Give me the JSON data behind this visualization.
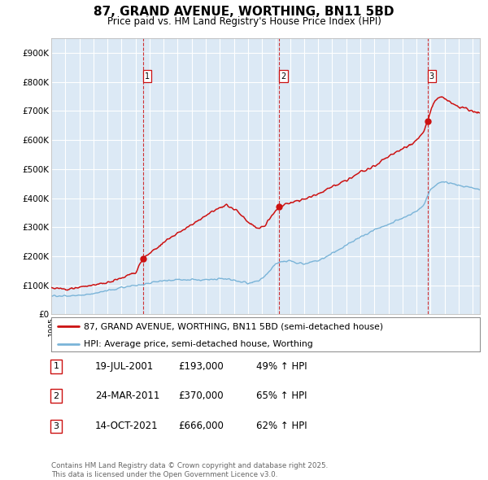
{
  "title": "87, GRAND AVENUE, WORTHING, BN11 5BD",
  "subtitle": "Price paid vs. HM Land Registry's House Price Index (HPI)",
  "bg_color": "#dce9f5",
  "red_color": "#cc1111",
  "blue_color": "#7ab4d8",
  "ylim": [
    0,
    950000
  ],
  "yticks": [
    0,
    100000,
    200000,
    300000,
    400000,
    500000,
    600000,
    700000,
    800000,
    900000
  ],
  "ytick_labels": [
    "£0",
    "£100K",
    "£200K",
    "£300K",
    "£400K",
    "£500K",
    "£600K",
    "£700K",
    "£800K",
    "£900K"
  ],
  "sale1_date": 2001.54,
  "sale1_price": 193000,
  "sale1_label": "1",
  "sale2_date": 2011.23,
  "sale2_price": 370000,
  "sale2_label": "2",
  "sale3_date": 2021.79,
  "sale3_price": 666000,
  "sale3_label": "3",
  "legend_line1": "87, GRAND AVENUE, WORTHING, BN11 5BD (semi-detached house)",
  "legend_line2": "HPI: Average price, semi-detached house, Worthing",
  "table_row1": [
    "1",
    "19-JUL-2001",
    "£193,000",
    "49% ↑ HPI"
  ],
  "table_row2": [
    "2",
    "24-MAR-2011",
    "£370,000",
    "65% ↑ HPI"
  ],
  "table_row3": [
    "3",
    "14-OCT-2021",
    "£666,000",
    "62% ↑ HPI"
  ],
  "footer": "Contains HM Land Registry data © Crown copyright and database right 2025.\nThis data is licensed under the Open Government Licence v3.0."
}
